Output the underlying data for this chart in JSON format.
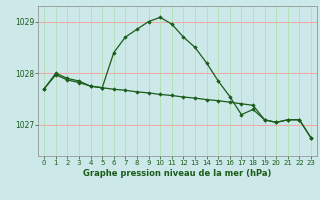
{
  "title": "Graphe pression niveau de la mer (hPa)",
  "background_color": "#cce8e8",
  "plot_bg_color": "#cce8e8",
  "grid_color_h": "#ff9999",
  "grid_color_v": "#aaddaa",
  "line_color": "#1a5c1a",
  "marker_color": "#1a5c1a",
  "xlim": [
    -0.5,
    23.5
  ],
  "ylim": [
    1026.4,
    1029.3
  ],
  "yticks": [
    1027,
    1028,
    1029
  ],
  "xticks": [
    0,
    1,
    2,
    3,
    4,
    5,
    6,
    7,
    8,
    9,
    10,
    11,
    12,
    13,
    14,
    15,
    16,
    17,
    18,
    19,
    20,
    21,
    22,
    23
  ],
  "series1_x": [
    0,
    1,
    2,
    3,
    4,
    5,
    6,
    7,
    8,
    9,
    10,
    11,
    12,
    13,
    14,
    15,
    16,
    17,
    18,
    19,
    20,
    21,
    22,
    23
  ],
  "series1_y": [
    1027.7,
    1028.0,
    1027.9,
    1027.85,
    1027.75,
    1027.72,
    1028.4,
    1028.7,
    1028.85,
    1029.0,
    1029.08,
    1028.95,
    1028.7,
    1028.5,
    1028.2,
    1027.85,
    1027.55,
    1027.2,
    1027.3,
    1027.1,
    1027.05,
    1027.1,
    1027.1,
    1026.75
  ],
  "series2_x": [
    0,
    1,
    2,
    3,
    4,
    5,
    6,
    7,
    8,
    9,
    10,
    11,
    12,
    13,
    14,
    15,
    16,
    17,
    18,
    19,
    20,
    21,
    22,
    23
  ],
  "series2_y": [
    1027.7,
    1027.97,
    1027.87,
    1027.82,
    1027.75,
    1027.72,
    1027.69,
    1027.67,
    1027.64,
    1027.62,
    1027.59,
    1027.57,
    1027.54,
    1027.52,
    1027.49,
    1027.47,
    1027.44,
    1027.41,
    1027.38,
    1027.1,
    1027.05,
    1027.1,
    1027.1,
    1026.75
  ],
  "title_fontsize": 6,
  "tick_fontsize": 5.0,
  "ytick_fontsize": 5.5
}
